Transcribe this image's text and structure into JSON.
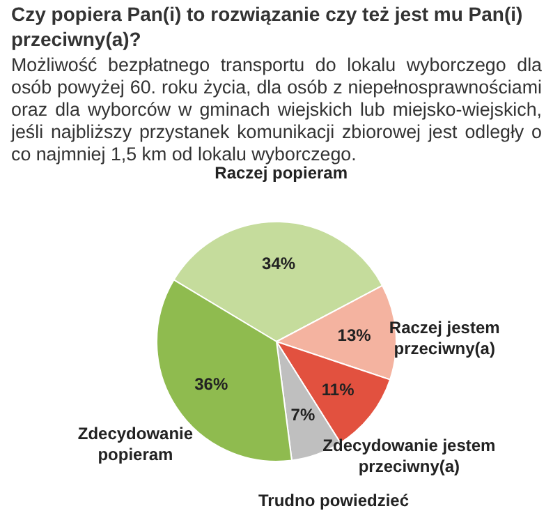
{
  "chart_data": {
    "type": "pie",
    "title": "Czy popiera Pan(i) to rozwiązanie czy też jest mu Pan(i) przeciwny(a)?",
    "subtitle": "Możliwość bezpłatnego transportu do lokalu wyborczego dla osób powyżej 60. roku życia, dla osób z niepełnosprawnościami oraz dla wyborców w gminach wiejskich lub miejsko-wiejskich, jeśli najbliższy przystanek komunikacji zbiorowej jest odległy o co najmniej 1,5 km od lokalu wyborczego.",
    "categories": [
      "Raczej popieram",
      "Raczej jestem przeciwny(a)",
      "Zdecydowanie jestem przeciwny(a)",
      "Trudno powiedzieć",
      "Zdecydowanie popieram"
    ],
    "values": [
      34,
      13,
      11,
      7,
      36
    ],
    "colors": [
      "#c5dc9c",
      "#f4b3a0",
      "#e2513f",
      "#bfbfbf",
      "#8fbb4f"
    ],
    "value_labels": [
      "34%",
      "13%",
      "11%",
      "7%",
      "36%"
    ]
  }
}
